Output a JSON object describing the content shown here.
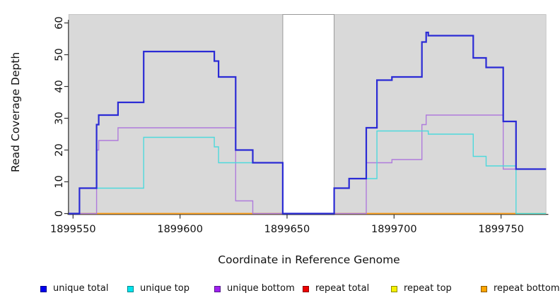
{
  "chart_data": {
    "type": "line",
    "subtype": "step-coverage-plot",
    "title": "",
    "xlabel": "Coordinate in Reference Genome",
    "ylabel": "Read Coverage Depth",
    "xlim": [
      1899548,
      1899772
    ],
    "ylim": [
      0,
      62
    ],
    "x_ticks": [
      1899550,
      1899600,
      1899650,
      1899700,
      1899750
    ],
    "y_ticks": [
      0,
      10,
      20,
      30,
      40,
      50,
      60
    ],
    "grid": false,
    "panel_background": "#d9d9d9",
    "figure_background": "#ffffff",
    "shaded_regions": [
      {
        "name": "left-coverage-block",
        "x0": 1899548,
        "x1": 1899648,
        "fill": "#d9d9d9",
        "stroke": "#bdbdbd"
      },
      {
        "name": "right-coverage-block",
        "x0": 1899672,
        "x1": 1899771,
        "fill": "#d9d9d9",
        "stroke": "#bdbdbd"
      }
    ],
    "gap_region": {
      "name": "uncovered-gap",
      "x0": 1899648,
      "x1": 1899672,
      "fill": "#ffffff",
      "stroke": "#999999"
    },
    "series_draw_order_note": "drawn first to last; steps are [x, depth] holding depth until next x; 'end' closes the final segment",
    "series": [
      {
        "name": "repeat total",
        "color": "#d40000",
        "width": 1.4,
        "steps": [
          [
            1899553,
            0
          ]
        ],
        "end": 1899757
      },
      {
        "name": "repeat top",
        "color": "#efe400",
        "width": 1.4,
        "steps": [
          [
            1899553,
            0
          ]
        ],
        "end": 1899771
      },
      {
        "name": "repeat bottom",
        "color": "#ffa01e",
        "width": 1.6,
        "steps": [
          [
            1899558,
            0
          ]
        ],
        "end": 1899757
      },
      {
        "name": "unique bottom",
        "color": "#af7bdc",
        "width": 1.4,
        "steps": [
          [
            1899548,
            0
          ],
          [
            1899561,
            20
          ],
          [
            1899562,
            23
          ],
          [
            1899571,
            27
          ],
          [
            1899626,
            4
          ],
          [
            1899634,
            0
          ],
          [
            1899687,
            16
          ],
          [
            1899699,
            17
          ],
          [
            1899713,
            28
          ],
          [
            1899715,
            31
          ],
          [
            1899751,
            14
          ]
        ],
        "end": 1899771
      },
      {
        "name": "unique top",
        "color": "#4ed9dc",
        "width": 1.4,
        "steps": [
          [
            1899553,
            8
          ],
          [
            1899583,
            24
          ],
          [
            1899616,
            21
          ],
          [
            1899618,
            16
          ],
          [
            1899648,
            0
          ],
          [
            1899672,
            8
          ],
          [
            1899679,
            11
          ],
          [
            1899692,
            26
          ],
          [
            1899716,
            25
          ],
          [
            1899737,
            18
          ],
          [
            1899743,
            15
          ],
          [
            1899757,
            0
          ]
        ],
        "end": 1899771
      },
      {
        "name": "unique total",
        "color": "#2b2bd5",
        "width": 2.2,
        "steps": [
          [
            1899548,
            0
          ],
          [
            1899553,
            8
          ],
          [
            1899561,
            28
          ],
          [
            1899562,
            31
          ],
          [
            1899571,
            35
          ],
          [
            1899583,
            51
          ],
          [
            1899616,
            48
          ],
          [
            1899618,
            43
          ],
          [
            1899626,
            20
          ],
          [
            1899634,
            16
          ],
          [
            1899648,
            0
          ],
          [
            1899672,
            8
          ],
          [
            1899679,
            11
          ],
          [
            1899687,
            27
          ],
          [
            1899692,
            42
          ],
          [
            1899699,
            43
          ],
          [
            1899713,
            54
          ],
          [
            1899715,
            57
          ],
          [
            1899716,
            56
          ],
          [
            1899737,
            49
          ],
          [
            1899743,
            46
          ],
          [
            1899751,
            29
          ],
          [
            1899757,
            14
          ]
        ],
        "end": 1899771
      }
    ],
    "legend": {
      "position": "bottom",
      "items": [
        {
          "label": "unique total",
          "fill": "#0000f0",
          "border": "#00008b"
        },
        {
          "label": "unique top",
          "fill": "#00e5ee",
          "border": "#00868b"
        },
        {
          "label": "unique bottom",
          "fill": "#a020f0",
          "border": "#551a8b"
        },
        {
          "label": "repeat total",
          "fill": "#ee0000",
          "border": "#8b0000"
        },
        {
          "label": "repeat top",
          "fill": "#f5f000",
          "border": "#8b8b00"
        },
        {
          "label": "repeat bottom",
          "fill": "#ffa500",
          "border": "#8b5a00"
        }
      ]
    },
    "axis_color": "#333333",
    "tick_label_color": "#111111"
  }
}
